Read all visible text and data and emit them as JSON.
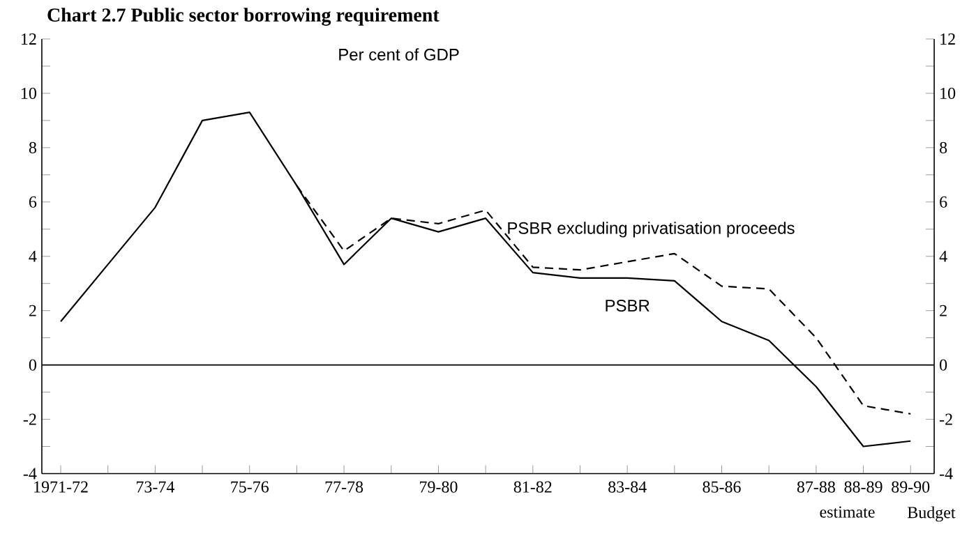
{
  "chart_data": {
    "type": "line",
    "title": "Chart 2.7 Public sector borrowing requirement",
    "ylabel": "Per cent of GDP",
    "categories": [
      "1971-72",
      null,
      "73-74",
      null,
      "75-76",
      null,
      "77-78",
      null,
      "79-80",
      null,
      "81-82",
      null,
      "83-84",
      null,
      "85-86",
      null,
      "87-88",
      "88-89",
      "89-90"
    ],
    "series": [
      {
        "name": "PSBR",
        "color": "#000000",
        "line_style": "solid",
        "values": [
          1.6,
          3.7,
          5.8,
          9.0,
          9.3,
          6.6,
          3.7,
          5.4,
          4.9,
          5.4,
          3.4,
          3.2,
          3.2,
          3.1,
          1.6,
          0.9,
          -0.8,
          -3.0,
          -2.8
        ]
      },
      {
        "name": "PSBR excluding privatisation proceeds",
        "color": "#000000",
        "line_style": "dashed",
        "values": [
          null,
          null,
          null,
          null,
          null,
          6.6,
          4.2,
          5.4,
          5.2,
          5.7,
          3.6,
          3.5,
          3.8,
          4.1,
          2.9,
          2.8,
          1.0,
          -1.5,
          -1.8
        ]
      }
    ],
    "ylim": [
      -4,
      12
    ],
    "yticks": [
      -4,
      {
        "value": -3,
        "label": null
      },
      -2,
      {
        "value": -1,
        "label": null
      },
      0,
      {
        "value": 1,
        "label": null
      },
      2,
      {
        "value": 3,
        "label": null
      },
      4,
      {
        "value": 5,
        "label": null
      },
      6,
      {
        "value": 7,
        "label": null
      },
      8,
      {
        "value": 9,
        "label": null
      },
      10,
      {
        "value": 11,
        "label": null
      },
      12
    ],
    "y2lim": [
      -4,
      12
    ],
    "y2ticks": [
      -4,
      {
        "value": -3,
        "label": null
      },
      -2,
      {
        "value": -1,
        "label": null
      },
      0,
      {
        "value": 1,
        "label": null
      },
      2,
      {
        "value": 3,
        "label": null
      },
      4,
      {
        "value": 5,
        "label": null
      },
      6,
      {
        "value": 7,
        "label": null
      },
      8,
      {
        "value": 9,
        "label": null
      },
      10,
      {
        "value": 11,
        "label": null
      },
      12
    ],
    "ref_lines": [
      {
        "axis": "y",
        "value": 0,
        "color": "#000000"
      }
    ],
    "annotations": [
      "estimate",
      "Budget"
    ],
    "grid": false,
    "marker": "none"
  }
}
